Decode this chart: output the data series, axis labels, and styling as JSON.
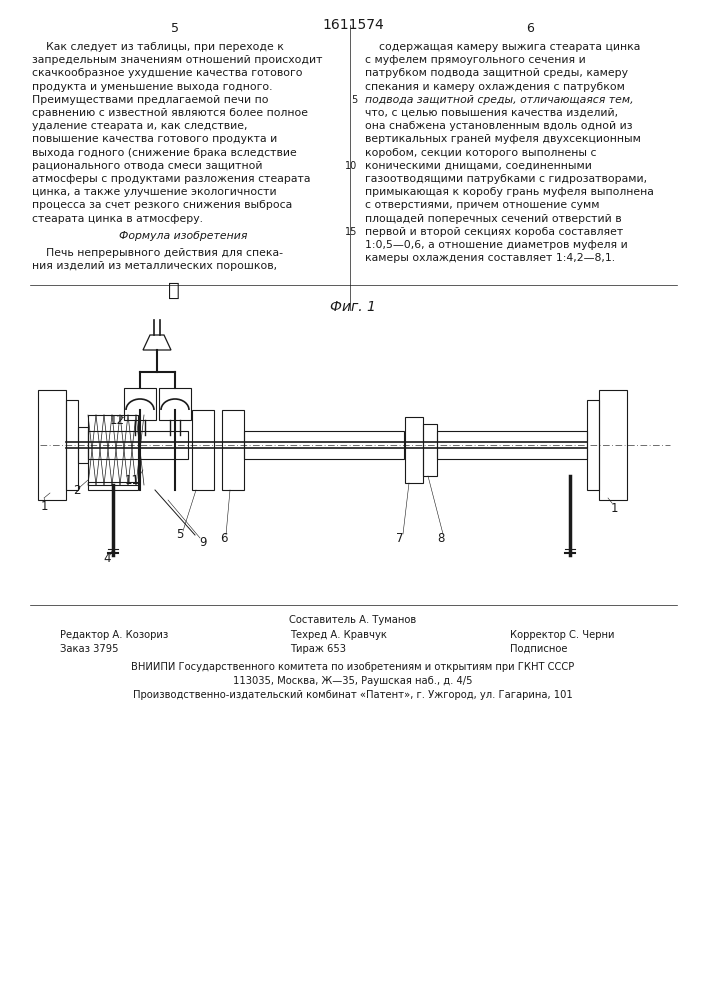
{
  "title": "1611574",
  "page_col_left": "5",
  "page_col_right": "6",
  "bg_color": "#ffffff",
  "text_color": "#1a1a1a",
  "fig_label": "Фиг. 1",
  "left_text_blocks": [
    {
      "text": "    Как следует из таблицы, при переходе к запредельным значениям отношений происходит скачкообразное ухудшение качества готового продукта и уменьшение выхода годного. Преимуществами предлагаемой печи по сравнению с известной являются более полное удаление стеарата и, как следствие, повышение качества готового продукта и выхода годного (снижение брака вследствие рационального отвода смеси защитной атмосферы с продуктами разложения стеарата цинка, а также улучшение экологичности процесса за счет резкого снижения выброса стеарата цинка в атмосферу.",
      "style": "normal",
      "indent": true
    },
    {
      "text": "Формула изобретения",
      "style": "italic",
      "indent": true,
      "center": true
    },
    {
      "text": "    Печь непрерывного действия для спекания изделий из металлических порошков,",
      "style": "normal",
      "indent": true
    }
  ],
  "right_text": "    содержащая камеру выжига стеарата цинка с муфелем прямоугольного сечения и патрубком подвода защитной среды, камеру спекания и камеру охлаждения с патрубком подвода защитной среды, отличающаяся тем, что, с целью повышения качества изделий, она снабжена установленным вдоль одной из вертикальных граней муфеля двухсекционным коробом, секции которого выполнены с коническими днищами, соединенными газоотводящими патрубками с гидрозатворами, примыкающая к коробу грань муфеля выполнена с отверстиями, причем отношение сумм площадей поперечных сечений отверстий в первой и второй секциях короба составляет 1:0,5—0,6, а отношение диаметров муфеля и камеры охлаждения составляет 1:4,2—8,1.",
  "footer_col1_l1": "Редактор А. Козориз",
  "footer_col1_l2": "Заказ 3795",
  "footer_col2_l1": "Составитель А. Туманов",
  "footer_col2_l2": "Техред А. Кравчук",
  "footer_col2_l3": "Тираж 653",
  "footer_col3_l1": "Корректор С. Черни",
  "footer_col3_l2": "Подписное",
  "footer_vnipi": "ВНИИПИ Государственного комитета по изобретениям и открытиям при ГКНТ СССР",
  "footer_addr": "113035, Москва, Ж—35, Раушская наб., д. 4/5",
  "footer_prod": "Производственно-издательский комбинат «Патент», г. Ужгород, ул. Гагарина, 101"
}
